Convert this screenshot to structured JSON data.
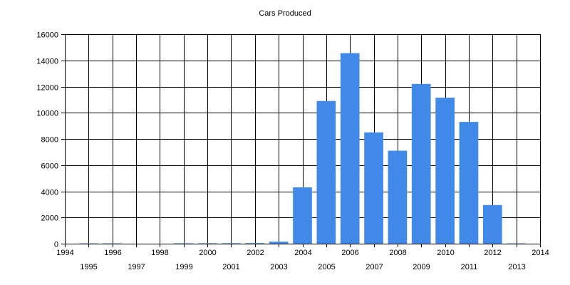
{
  "chart_data": {
    "type": "bar",
    "title": "Cars Produced",
    "xlabel": "",
    "ylabel": "",
    "x": [
      1995,
      1996,
      1997,
      1998,
      1999,
      2000,
      2001,
      2002,
      2003,
      2004,
      2005,
      2006,
      2007,
      2008,
      2009,
      2010,
      2011,
      2012,
      2013
    ],
    "values": [
      25,
      25,
      0,
      0,
      30,
      30,
      35,
      45,
      150,
      4300,
      10900,
      14550,
      8500,
      7100,
      12200,
      11150,
      9300,
      2950,
      25
    ],
    "xlim": [
      1994,
      2014
    ],
    "ylim": [
      0,
      16000
    ],
    "x_ticks": [
      "1994",
      "1995",
      "1996",
      "1997",
      "1998",
      "1999",
      "2000",
      "2001",
      "2002",
      "2003",
      "2004",
      "2005",
      "2006",
      "2007",
      "2008",
      "2009",
      "2010",
      "2011",
      "2012",
      "2013",
      "2014"
    ],
    "y_ticks": [
      "0",
      "2000",
      "4000",
      "6000",
      "8000",
      "10000",
      "12000",
      "14000",
      "16000"
    ],
    "bar_color": "#4189e8",
    "grid": true,
    "legend": "none"
  }
}
